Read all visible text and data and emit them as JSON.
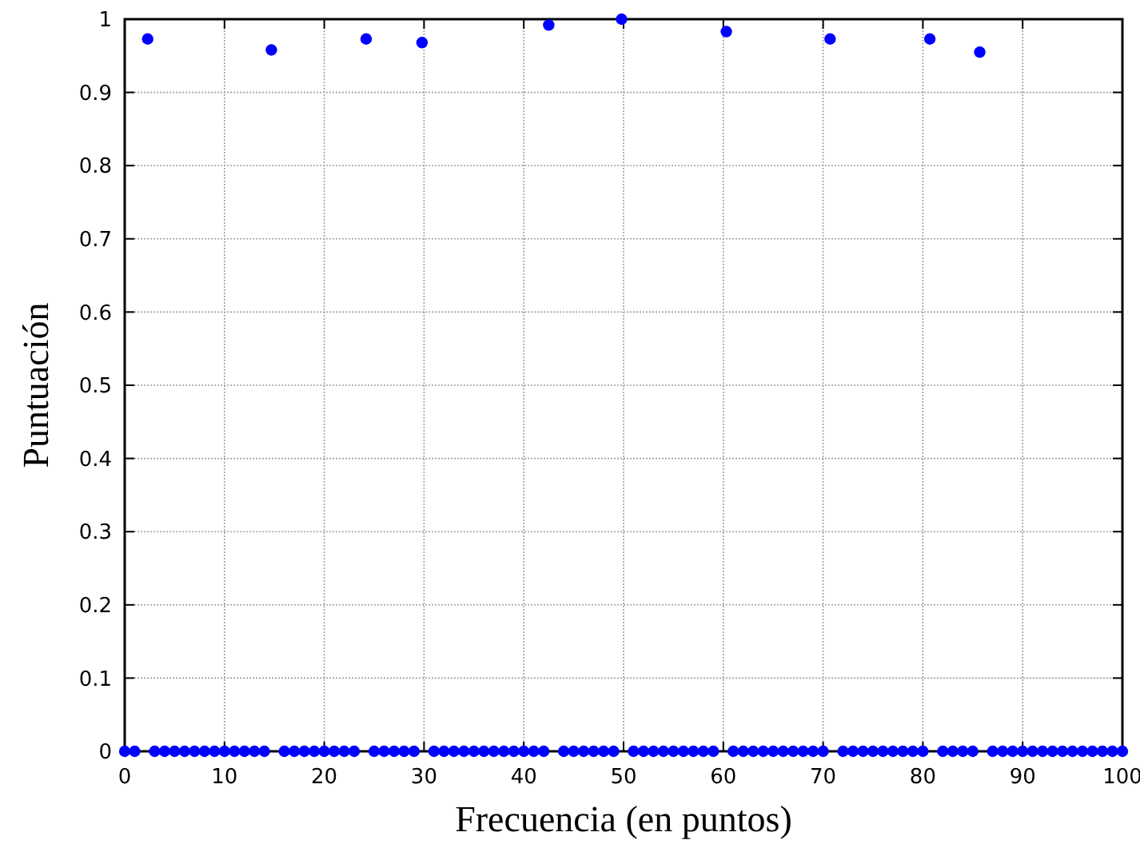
{
  "chart_data": {
    "type": "scatter",
    "xlabel": "Frecuencia (en puntos)",
    "ylabel": "Puntuación",
    "xlim": [
      0,
      100
    ],
    "xticks": [
      0,
      10,
      20,
      30,
      40,
      50,
      60,
      70,
      80,
      90,
      100
    ],
    "ylim": [
      0,
      1
    ],
    "yticks": [
      0,
      0.1,
      0.2,
      0.3,
      0.4,
      0.5,
      0.6,
      0.7,
      0.8,
      0.9,
      1
    ],
    "grid": true,
    "marker": "circle",
    "series": [
      {
        "color": "#0000ff",
        "x": [
          0,
          1,
          3,
          4,
          5,
          6,
          7,
          8,
          9,
          10,
          11,
          12,
          13,
          14,
          16,
          17,
          18,
          19,
          20,
          21,
          22,
          23,
          25,
          26,
          27,
          28,
          29,
          31,
          32,
          33,
          34,
          35,
          36,
          37,
          38,
          39,
          40,
          41,
          42,
          44,
          45,
          46,
          47,
          48,
          49,
          51,
          52,
          53,
          54,
          55,
          56,
          57,
          58,
          59,
          61,
          62,
          63,
          64,
          65,
          66,
          67,
          68,
          69,
          70,
          72,
          73,
          74,
          75,
          76,
          77,
          78,
          79,
          80,
          82,
          83,
          84,
          85,
          87,
          88,
          89,
          90,
          91,
          92,
          93,
          94,
          95,
          96,
          97,
          98,
          99,
          100,
          2.3,
          14.7,
          24.2,
          29.8,
          42.5,
          49.8,
          60.3,
          70.7,
          80.7,
          85.7
        ],
        "values": [
          0,
          0,
          0,
          0,
          0,
          0,
          0,
          0,
          0,
          0,
          0,
          0,
          0,
          0,
          0,
          0,
          0,
          0,
          0,
          0,
          0,
          0,
          0,
          0,
          0,
          0,
          0,
          0,
          0,
          0,
          0,
          0,
          0,
          0,
          0,
          0,
          0,
          0,
          0,
          0,
          0,
          0,
          0,
          0,
          0,
          0,
          0,
          0,
          0,
          0,
          0,
          0,
          0,
          0,
          0,
          0,
          0,
          0,
          0,
          0,
          0,
          0,
          0,
          0,
          0,
          0,
          0,
          0,
          0,
          0,
          0,
          0,
          0,
          0,
          0,
          0,
          0,
          0,
          0,
          0,
          0,
          0,
          0,
          0,
          0,
          0,
          0,
          0,
          0,
          0,
          0,
          0.973,
          0.958,
          0.973,
          0.968,
          0.992,
          1.0,
          0.983,
          0.973,
          0.973,
          0.955
        ]
      }
    ]
  }
}
